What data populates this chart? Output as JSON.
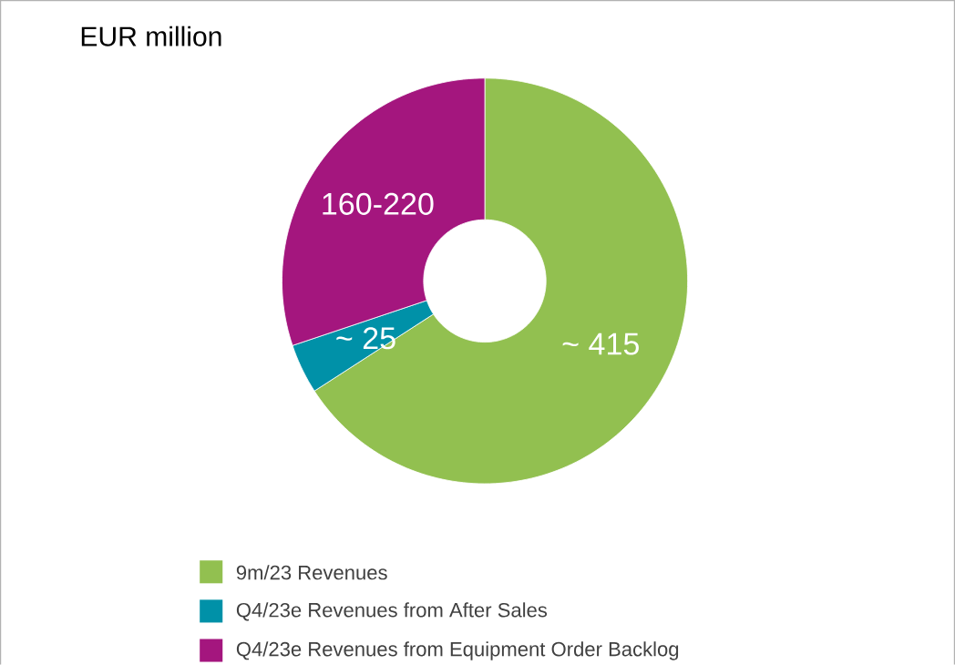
{
  "chart_data": {
    "type": "donut",
    "title": "EUR million",
    "categories": [
      "9m/23 Revenues",
      "Q4/23e Revenues from After Sales",
      "Q4/23e Revenues from Equipment Order Backlog"
    ],
    "values": [
      415,
      25,
      190
    ],
    "value_labels": [
      "~ 415",
      "~ 25",
      "160-220"
    ],
    "colors": [
      "#92c050",
      "#0091a8",
      "#a4167e"
    ],
    "legend": "bottom"
  }
}
